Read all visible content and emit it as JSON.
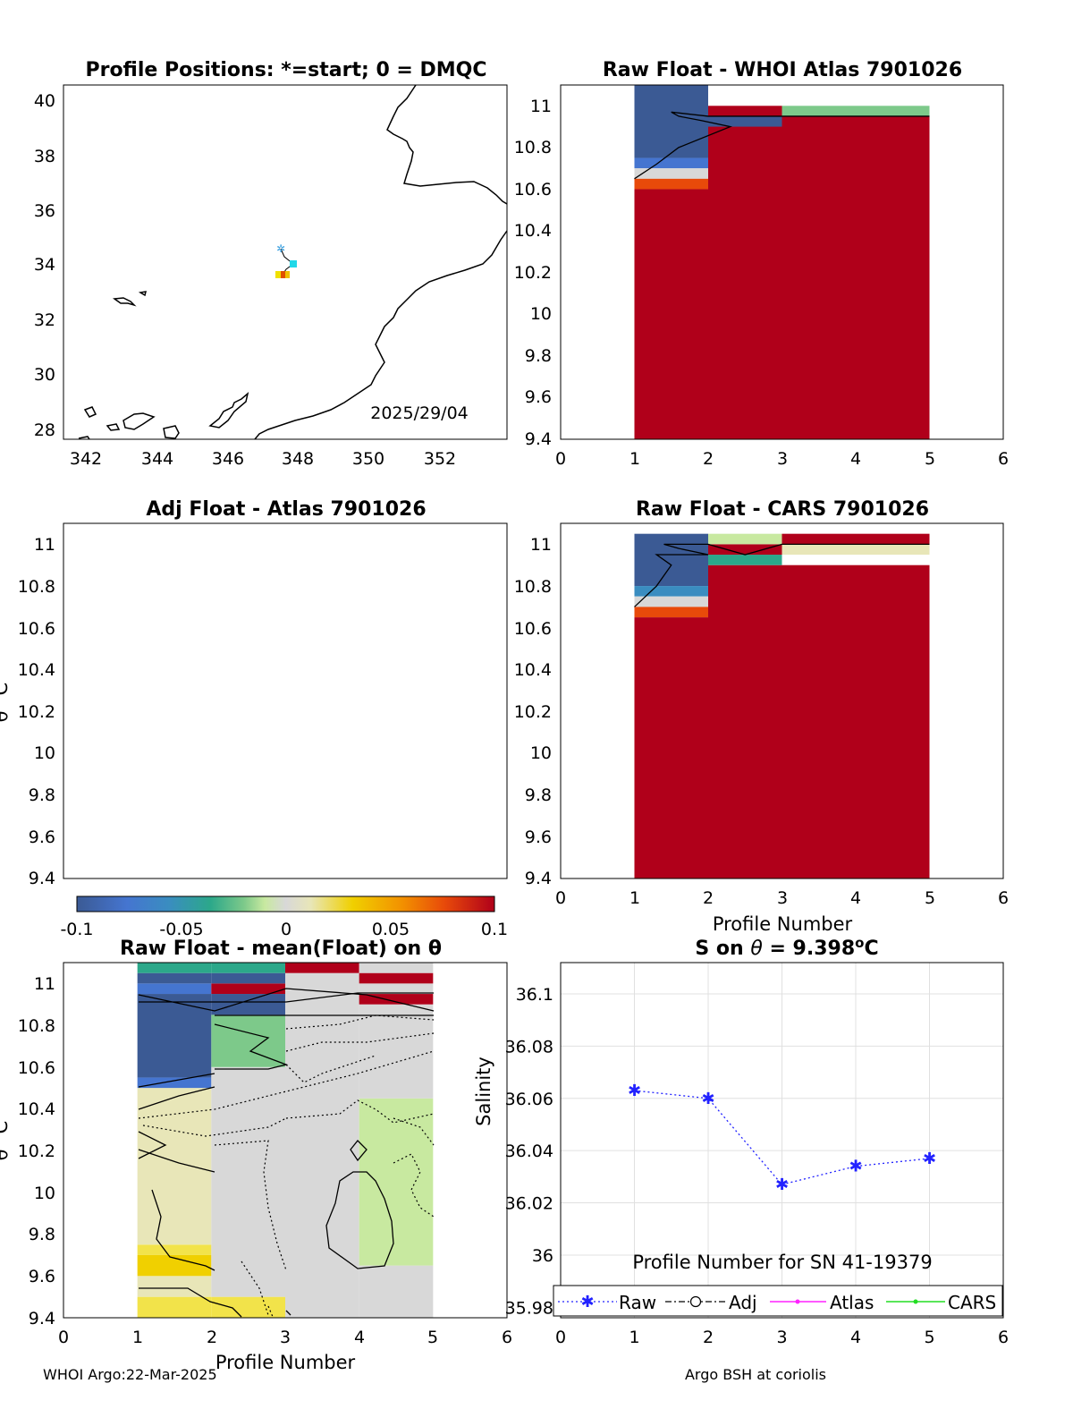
{
  "footer": {
    "left": "WHOI Argo:22-Mar-2025",
    "right": "Argo BSH at coriolis"
  },
  "colors": {
    "neg10": "#3b5a94",
    "neg08": "#4575d0",
    "neg06": "#3a8dc0",
    "neg04": "#2ca88a",
    "neg02": "#7dc98a",
    "neg01": "#c8e9a0",
    "zero": "#d8d8d8",
    "pos01": "#e8e6b8",
    "pos03": "#f2e34a",
    "pos05": "#f0d000",
    "pos08": "#e84a0a",
    "pos10": "#b0001a",
    "marker_blue": "#2222ff"
  },
  "map": {
    "title": "Profile Positions: *=start; 0 = DMQC",
    "date": "2025/29/04",
    "xticks": [
      "342",
      "344",
      "346",
      "348",
      "350",
      "352"
    ],
    "yticks": [
      "28",
      "30",
      "32",
      "34",
      "36",
      "38",
      "40"
    ],
    "xlim": [
      341.9,
      353.8
    ],
    "ylim": [
      27.6,
      40.6
    ],
    "profiles": [
      {
        "lon": 347.5,
        "lat": 34.6,
        "marker": "start",
        "color": "#3aa0e0"
      },
      {
        "lon": 347.9,
        "lat": 34.0,
        "color": "#20d8e8"
      },
      {
        "lon": 347.8,
        "lat": 33.6,
        "color": "#f0c000"
      },
      {
        "lon": 347.55,
        "lat": 33.6,
        "color": "#e05000"
      },
      {
        "lon": 347.4,
        "lat": 33.6,
        "color": "#f0e000"
      }
    ]
  },
  "panel_whoi": {
    "title": "Raw Float - WHOI Atlas  7901026",
    "xticks": [
      "0",
      "1",
      "2",
      "3",
      "4",
      "5",
      "6"
    ],
    "yticks": [
      "9.4",
      "9.6",
      "9.8",
      "10",
      "10.2",
      "10.4",
      "10.6",
      "10.8",
      "11"
    ],
    "xlim": [
      0,
      6
    ],
    "ylim": [
      9.4,
      11.1
    ]
  },
  "panel_adj": {
    "title": "Adj Float - Atlas  7901026",
    "ylabel": "θ °C",
    "yticks": [
      "9.4",
      "9.6",
      "9.8",
      "10",
      "10.2",
      "10.4",
      "10.6",
      "10.8",
      "11"
    ]
  },
  "panel_cars": {
    "title": "Raw Float - CARS  7901026",
    "xlabel": "Profile Number",
    "xticks": [
      "0",
      "1",
      "2",
      "3",
      "4",
      "5",
      "6"
    ],
    "yticks": [
      "9.4",
      "9.6",
      "9.8",
      "10",
      "10.2",
      "10.4",
      "10.6",
      "10.8",
      "11"
    ]
  },
  "colorbar": {
    "ticks": [
      "-0.1",
      "-0.05",
      "0",
      "0.05",
      "0.1"
    ],
    "range": [
      -0.1,
      0.1
    ]
  },
  "panel_mean": {
    "title": "Raw Float - mean(Float) on θ",
    "ylabel": "θ °C",
    "xlabel": "Profile Number",
    "xticks": [
      "0",
      "1",
      "2",
      "3",
      "4",
      "5",
      "6"
    ],
    "yticks": [
      "9.4",
      "9.6",
      "9.8",
      "10",
      "10.2",
      "10.4",
      "10.6",
      "10.8",
      "11"
    ]
  },
  "chart_data": [
    {
      "type": "heatmap",
      "title": "Raw Float - WHOI Atlas  7901026",
      "xlim": [
        0,
        6
      ],
      "ylim": [
        9.4,
        11.1
      ],
      "cells": [
        {
          "x0": 1,
          "x1": 2,
          "y0": 10.75,
          "y1": 11.1,
          "c": "neg10"
        },
        {
          "x0": 1,
          "x1": 2,
          "y0": 10.7,
          "y1": 10.75,
          "c": "neg08"
        },
        {
          "x0": 1,
          "x1": 2,
          "y0": 10.65,
          "y1": 10.7,
          "c": "zero"
        },
        {
          "x0": 1,
          "x1": 2,
          "y0": 10.6,
          "y1": 10.65,
          "c": "pos08"
        },
        {
          "x0": 1,
          "x1": 2,
          "y0": 9.4,
          "y1": 10.6,
          "c": "pos10"
        },
        {
          "x0": 2,
          "x1": 5,
          "y0": 9.4,
          "y1": 10.95,
          "c": "pos10"
        },
        {
          "x0": 2,
          "x1": 3,
          "y0": 10.9,
          "y1": 10.95,
          "c": "neg10"
        },
        {
          "x0": 2,
          "x1": 3,
          "y0": 10.95,
          "y1": 11.0,
          "c": "pos10"
        },
        {
          "x0": 3,
          "x1": 5,
          "y0": 10.95,
          "y1": 11.0,
          "c": "neg02"
        }
      ],
      "contour": [
        [
          1.0,
          10.65
        ],
        [
          1.3,
          10.72
        ],
        [
          1.6,
          10.8
        ],
        [
          2.3,
          10.9
        ],
        [
          1.9,
          10.93
        ],
        [
          1.6,
          10.95
        ],
        [
          1.5,
          10.97
        ],
        [
          2.0,
          10.95
        ],
        [
          3.0,
          10.95
        ],
        [
          5.0,
          10.95
        ]
      ]
    },
    {
      "type": "heatmap",
      "title": "Adj Float - Atlas  7901026",
      "ylim": [
        9.4,
        11.1
      ],
      "cells": []
    },
    {
      "type": "heatmap",
      "title": "Raw Float - CARS  7901026",
      "xlabel": "Profile Number",
      "xlim": [
        0,
        6
      ],
      "ylim": [
        9.4,
        11.1
      ],
      "cells": [
        {
          "x0": 1,
          "x1": 2,
          "y0": 10.8,
          "y1": 11.05,
          "c": "neg10"
        },
        {
          "x0": 1,
          "x1": 2,
          "y0": 10.75,
          "y1": 10.8,
          "c": "neg06"
        },
        {
          "x0": 1,
          "x1": 2,
          "y0": 10.7,
          "y1": 10.75,
          "c": "zero"
        },
        {
          "x0": 1,
          "x1": 2,
          "y0": 10.65,
          "y1": 10.7,
          "c": "pos08"
        },
        {
          "x0": 1,
          "x1": 2,
          "y0": 9.4,
          "y1": 10.65,
          "c": "pos10"
        },
        {
          "x0": 2,
          "x1": 5,
          "y0": 9.4,
          "y1": 10.9,
          "c": "pos10"
        },
        {
          "x0": 2,
          "x1": 3,
          "y0": 10.9,
          "y1": 10.95,
          "c": "neg04"
        },
        {
          "x0": 2,
          "x1": 3,
          "y0": 10.95,
          "y1": 11.0,
          "c": "pos10"
        },
        {
          "x0": 2,
          "x1": 3,
          "y0": 11.0,
          "y1": 11.05,
          "c": "neg01"
        },
        {
          "x0": 3,
          "x1": 5,
          "y0": 10.95,
          "y1": 11.0,
          "c": "pos01"
        },
        {
          "x0": 3,
          "x1": 5,
          "y0": 11.0,
          "y1": 11.05,
          "c": "pos10"
        }
      ],
      "contour": [
        [
          1.0,
          10.7
        ],
        [
          1.3,
          10.8
        ],
        [
          1.5,
          10.9
        ],
        [
          1.3,
          10.95
        ],
        [
          2.0,
          10.95
        ],
        [
          1.6,
          10.98
        ],
        [
          1.4,
          11.0
        ],
        [
          2.0,
          11.0
        ],
        [
          2.5,
          10.95
        ],
        [
          3.0,
          11.0
        ],
        [
          5.0,
          11.0
        ]
      ]
    },
    {
      "type": "heatmap",
      "title": "Raw Float - mean(Float) on θ",
      "xlabel": "Profile Number",
      "xlim": [
        0,
        6
      ],
      "ylim": [
        9.4,
        11.1
      ],
      "cells": [
        {
          "x0": 1,
          "x1": 2,
          "y0": 9.4,
          "y1": 9.5,
          "c": "pos03"
        },
        {
          "x0": 1,
          "x1": 2,
          "y0": 9.5,
          "y1": 9.6,
          "c": "pos01"
        },
        {
          "x0": 1,
          "x1": 2,
          "y0": 9.6,
          "y1": 9.7,
          "c": "pos05"
        },
        {
          "x0": 1,
          "x1": 2,
          "y0": 9.7,
          "y1": 9.75,
          "c": "pos03"
        },
        {
          "x0": 1,
          "x1": 2,
          "y0": 9.75,
          "y1": 10.5,
          "c": "pos01"
        },
        {
          "x0": 1,
          "x1": 2,
          "y0": 10.5,
          "y1": 10.55,
          "c": "neg08"
        },
        {
          "x0": 1,
          "x1": 2,
          "y0": 10.55,
          "y1": 10.95,
          "c": "neg10"
        },
        {
          "x0": 1,
          "x1": 2,
          "y0": 10.95,
          "y1": 11.0,
          "c": "neg08"
        },
        {
          "x0": 1,
          "x1": 2,
          "y0": 11.0,
          "y1": 11.05,
          "c": "neg10"
        },
        {
          "x0": 1,
          "x1": 2,
          "y0": 11.05,
          "y1": 11.1,
          "c": "neg04"
        },
        {
          "x0": 2,
          "x1": 3,
          "y0": 9.4,
          "y1": 9.5,
          "c": "pos03"
        },
        {
          "x0": 2,
          "x1": 3,
          "y0": 9.5,
          "y1": 10.6,
          "c": "zero"
        },
        {
          "x0": 2,
          "x1": 3,
          "y0": 10.6,
          "y1": 10.85,
          "c": "neg02"
        },
        {
          "x0": 2,
          "x1": 3,
          "y0": 10.85,
          "y1": 10.95,
          "c": "neg10"
        },
        {
          "x0": 2,
          "x1": 3,
          "y0": 10.95,
          "y1": 11.0,
          "c": "pos10"
        },
        {
          "x0": 2,
          "x1": 3,
          "y0": 11.0,
          "y1": 11.05,
          "c": "neg10"
        },
        {
          "x0": 2,
          "x1": 3,
          "y0": 11.05,
          "y1": 11.1,
          "c": "neg04"
        },
        {
          "x0": 3,
          "x1": 4,
          "y0": 9.4,
          "y1": 11.05,
          "c": "zero"
        },
        {
          "x0": 3,
          "x1": 4,
          "y0": 11.05,
          "y1": 11.1,
          "c": "pos10"
        },
        {
          "x0": 4,
          "x1": 5,
          "y0": 9.4,
          "y1": 9.65,
          "c": "zero"
        },
        {
          "x0": 4,
          "x1": 5,
          "y0": 9.65,
          "y1": 10.45,
          "c": "neg01"
        },
        {
          "x0": 4,
          "x1": 5,
          "y0": 10.45,
          "y1": 10.9,
          "c": "zero"
        },
        {
          "x0": 4,
          "x1": 5,
          "y0": 10.9,
          "y1": 10.95,
          "c": "pos10"
        },
        {
          "x0": 4,
          "x1": 5,
          "y0": 10.95,
          "y1": 11.0,
          "c": "zero"
        },
        {
          "x0": 4,
          "x1": 5,
          "y0": 11.0,
          "y1": 11.05,
          "c": "pos10"
        },
        {
          "x0": 4,
          "x1": 5,
          "y0": 11.05,
          "y1": 11.1,
          "c": "zero"
        }
      ]
    },
    {
      "type": "line",
      "title": "S on θ = 9.398°C",
      "xlabel": "Profile Number for SN 41-19379",
      "ylabel": "Salinity",
      "xlim": [
        0,
        6
      ],
      "ylim": [
        35.976,
        36.112
      ],
      "xticks": [
        "0",
        "1",
        "2",
        "3",
        "4",
        "5",
        "6"
      ],
      "yticks": [
        "35.98",
        "36",
        "36.02",
        "36.04",
        "36.06",
        "36.08",
        "36.1"
      ],
      "grid": true,
      "legend_position": "bottom",
      "series": [
        {
          "name": "Raw",
          "x": [
            1,
            2,
            3,
            4,
            5
          ],
          "values": [
            36.063,
            36.06,
            36.027,
            36.034,
            36.037
          ]
        },
        {
          "name": "Adj",
          "x": [],
          "values": []
        },
        {
          "name": "Atlas",
          "x": [],
          "values": []
        },
        {
          "name": "CARS",
          "x": [],
          "values": []
        }
      ]
    }
  ]
}
